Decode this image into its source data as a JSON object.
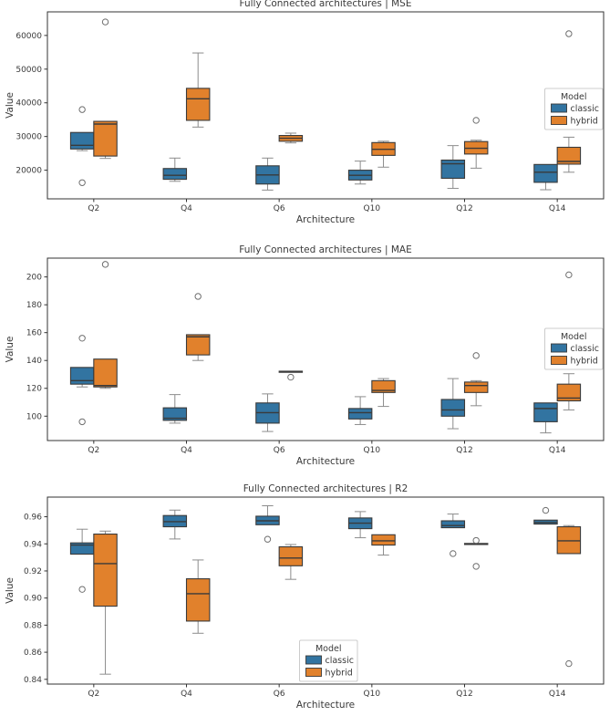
{
  "figure": {
    "description": "Three stacked box plot subplots comparing classic vs hybrid models across fully connected architectures"
  },
  "palette": {
    "classic": "#3274a1",
    "hybrid": "#e1812c",
    "box_edge": "#3a3a3a",
    "median": "#3a3a3a",
    "whisker": "#8c8c8c",
    "flier_edge": "#6e6e6e",
    "axis": "#333333",
    "legend_border": "#cccccc",
    "text": "#3a3a3a"
  },
  "chart_data": [
    {
      "type": "boxplot",
      "metric": "mse",
      "title": "Fully Connected architectures | MSE",
      "xlabel": "Architecture",
      "ylabel": "Value",
      "categories": [
        "Q2",
        "Q4",
        "Q6",
        "Q10",
        "Q12",
        "Q14"
      ],
      "ylim": [
        11500,
        67000
      ],
      "yticks": [
        20000,
        30000,
        40000,
        50000,
        60000
      ],
      "ytick_labels": [
        "20000",
        "30000",
        "40000",
        "50000",
        "60000"
      ],
      "legend": {
        "title": "Model",
        "entries": [
          "classic",
          "hybrid"
        ],
        "position": "right"
      },
      "series": [
        {
          "name": "classic",
          "color": "#3274a1",
          "boxes": [
            {
              "whislo": 25800,
              "q1": 26300,
              "med": 27400,
              "q3": 31200,
              "whishi": 31200,
              "fliers": [
                38000,
                16300
              ]
            },
            {
              "whislo": 16700,
              "q1": 17300,
              "med": 18500,
              "q3": 20500,
              "whishi": 23600,
              "fliers": []
            },
            {
              "whislo": 14100,
              "q1": 15900,
              "med": 18600,
              "q3": 21300,
              "whishi": 23600,
              "fliers": []
            },
            {
              "whislo": 15900,
              "q1": 17100,
              "med": 18500,
              "q3": 20000,
              "whishi": 22700,
              "fliers": []
            },
            {
              "whislo": 14600,
              "q1": 17600,
              "med": 21900,
              "q3": 23000,
              "whishi": 27300,
              "fliers": []
            },
            {
              "whislo": 14200,
              "q1": 16400,
              "med": 19400,
              "q3": 21700,
              "whishi": 21700,
              "fliers": []
            }
          ]
        },
        {
          "name": "hybrid",
          "color": "#e1812c",
          "boxes": [
            {
              "whislo": 23500,
              "q1": 24200,
              "med": 33700,
              "q3": 34500,
              "whishi": 34500,
              "fliers": [
                64000
              ]
            },
            {
              "whislo": 32800,
              "q1": 34800,
              "med": 41200,
              "q3": 44300,
              "whishi": 54800,
              "fliers": []
            },
            {
              "whislo": 28100,
              "q1": 28600,
              "med": 29500,
              "q3": 30300,
              "whishi": 31000,
              "fliers": []
            },
            {
              "whislo": 20900,
              "q1": 24400,
              "med": 26200,
              "q3": 28200,
              "whishi": 28600,
              "fliers": []
            },
            {
              "whislo": 20600,
              "q1": 24800,
              "med": 26500,
              "q3": 28500,
              "whishi": 28900,
              "fliers": [
                34800
              ]
            },
            {
              "whislo": 19400,
              "q1": 21800,
              "med": 22600,
              "q3": 26800,
              "whishi": 29800,
              "fliers": [
                60500
              ]
            }
          ]
        }
      ]
    },
    {
      "type": "boxplot",
      "metric": "mae",
      "title": "Fully Connected architectures | MAE",
      "xlabel": "Architecture",
      "ylabel": "Value",
      "categories": [
        "Q2",
        "Q4",
        "Q6",
        "Q10",
        "Q12",
        "Q14"
      ],
      "ylim": [
        82.5,
        213.5
      ],
      "yticks": [
        100,
        120,
        140,
        160,
        180,
        200
      ],
      "ytick_labels": [
        "100",
        "120",
        "140",
        "160",
        "180",
        "200"
      ],
      "legend": {
        "title": "Model",
        "entries": [
          "classic",
          "hybrid"
        ],
        "position": "right"
      },
      "series": [
        {
          "name": "classic",
          "color": "#3274a1",
          "boxes": [
            {
              "whislo": 121,
              "q1": 123,
              "med": 125.5,
              "q3": 135,
              "whishi": 135,
              "fliers": [
                156,
                96
              ]
            },
            {
              "whislo": 95,
              "q1": 97,
              "med": 98.5,
              "q3": 106,
              "whishi": 115.5,
              "fliers": []
            },
            {
              "whislo": 89,
              "q1": 95,
              "med": 102.5,
              "q3": 109.5,
              "whishi": 116,
              "fliers": []
            },
            {
              "whislo": 94,
              "q1": 98,
              "med": 102.5,
              "q3": 105.5,
              "whishi": 114,
              "fliers": []
            },
            {
              "whislo": 91,
              "q1": 100,
              "med": 104.5,
              "q3": 112,
              "whishi": 127,
              "fliers": []
            },
            {
              "whislo": 88,
              "q1": 96,
              "med": 105.5,
              "q3": 109.5,
              "whishi": 109.5,
              "fliers": []
            }
          ]
        },
        {
          "name": "hybrid",
          "color": "#e1812c",
          "boxes": [
            {
              "whislo": 120,
              "q1": 121,
              "med": 122,
              "q3": 141,
              "whishi": 141,
              "fliers": [
                209
              ]
            },
            {
              "whislo": 140,
              "q1": 144,
              "med": 157,
              "q3": 158.5,
              "whishi": 158.5,
              "fliers": [
                186
              ]
            },
            {
              "whislo": 131.5,
              "q1": 131.5,
              "med": 131.9,
              "q3": 132.3,
              "whishi": 132.3,
              "fliers": [
                128
              ]
            },
            {
              "whislo": 107,
              "q1": 117,
              "med": 118.5,
              "q3": 125.5,
              "whishi": 127,
              "fliers": []
            },
            {
              "whislo": 107.5,
              "q1": 117,
              "med": 122,
              "q3": 124.5,
              "whishi": 125.5,
              "fliers": [
                143.5
              ]
            },
            {
              "whislo": 104.5,
              "q1": 111,
              "med": 113,
              "q3": 123,
              "whishi": 130.5,
              "fliers": [
                201.5
              ]
            }
          ]
        }
      ]
    },
    {
      "type": "boxplot",
      "metric": "r2",
      "title": "Fully Connected architectures | R2",
      "xlabel": "Architecture",
      "ylabel": "Value",
      "categories": [
        "Q2",
        "Q4",
        "Q6",
        "Q10",
        "Q12",
        "Q14"
      ],
      "ylim": [
        0.8365,
        0.9745
      ],
      "yticks": [
        0.84,
        0.86,
        0.88,
        0.9,
        0.92,
        0.94,
        0.96
      ],
      "ytick_labels": [
        "0.84",
        "0.86",
        "0.88",
        "0.90",
        "0.92",
        "0.94",
        "0.96"
      ],
      "legend": {
        "title": "Model",
        "entries": [
          "classic",
          "hybrid"
        ],
        "position": "lower center"
      },
      "series": [
        {
          "name": "classic",
          "color": "#3274a1",
          "boxes": [
            {
              "whislo": 0.9324,
              "q1": 0.9324,
              "med": 0.9391,
              "q3": 0.9407,
              "whishi": 0.9508,
              "fliers": [
                0.9064
              ]
            },
            {
              "whislo": 0.9436,
              "q1": 0.9526,
              "med": 0.9564,
              "q3": 0.9609,
              "whishi": 0.9649,
              "fliers": []
            },
            {
              "whislo": 0.9541,
              "q1": 0.9541,
              "med": 0.957,
              "q3": 0.9604,
              "whishi": 0.9681,
              "fliers": [
                0.9434
              ]
            },
            {
              "whislo": 0.9445,
              "q1": 0.9512,
              "med": 0.9553,
              "q3": 0.9591,
              "whishi": 0.9638,
              "fliers": []
            },
            {
              "whislo": 0.9519,
              "q1": 0.9519,
              "med": 0.9535,
              "q3": 0.957,
              "whishi": 0.962,
              "fliers": [
                0.9328
              ]
            },
            {
              "whislo": 0.9546,
              "q1": 0.9546,
              "med": 0.9558,
              "q3": 0.9575,
              "whishi": 0.9575,
              "fliers": [
                0.9647
              ]
            }
          ]
        },
        {
          "name": "hybrid",
          "color": "#e1812c",
          "boxes": [
            {
              "whislo": 0.8438,
              "q1": 0.894,
              "med": 0.9254,
              "q3": 0.9472,
              "whishi": 0.9494,
              "fliers": []
            },
            {
              "whislo": 0.874,
              "q1": 0.883,
              "med": 0.9032,
              "q3": 0.9142,
              "whishi": 0.9281,
              "fliers": []
            },
            {
              "whislo": 0.9138,
              "q1": 0.9238,
              "med": 0.9295,
              "q3": 0.9378,
              "whishi": 0.9395,
              "fliers": []
            },
            {
              "whislo": 0.9317,
              "q1": 0.9391,
              "med": 0.9422,
              "q3": 0.9467,
              "whishi": 0.9467,
              "fliers": []
            },
            {
              "whislo": 0.9395,
              "q1": 0.9395,
              "med": 0.94,
              "q3": 0.9403,
              "whishi": 0.9403,
              "fliers": [
                0.9425,
                0.9234
              ]
            },
            {
              "whislo": 0.9328,
              "q1": 0.9328,
              "med": 0.9422,
              "q3": 0.9526,
              "whishi": 0.9535,
              "fliers": [
                0.8516
              ]
            }
          ]
        }
      ]
    }
  ]
}
